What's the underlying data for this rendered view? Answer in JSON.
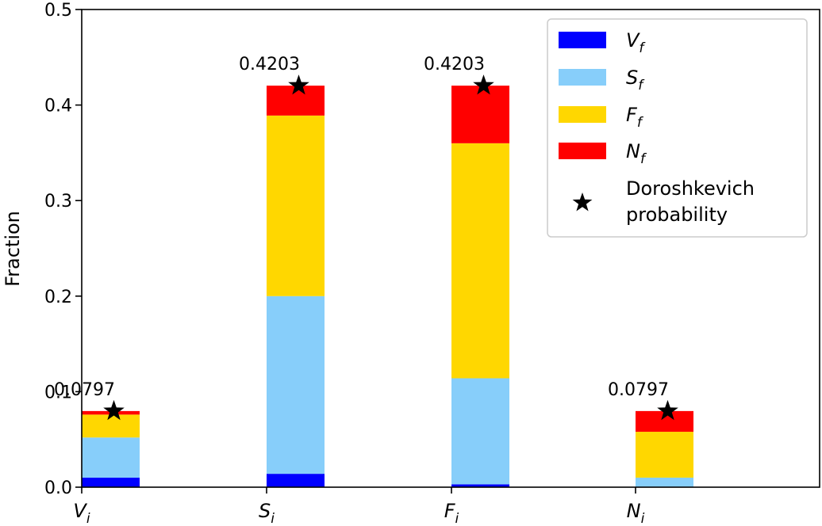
{
  "chart_data": {
    "type": "bar",
    "stacked": true,
    "categories": [
      "V",
      "S",
      "F",
      "N"
    ],
    "category_subscript": "i",
    "ylabel": "Fraction",
    "ylim": [
      0,
      0.5
    ],
    "yticks": [
      "0.0",
      "0.1",
      "0.2",
      "0.3",
      "0.4",
      "0.5"
    ],
    "grid": false,
    "legend_position": "top-right",
    "series": [
      {
        "name": "V",
        "subscript": "f",
        "color": "#0000ff",
        "values": [
          0.01,
          0.014,
          0.003,
          0.0
        ]
      },
      {
        "name": "S",
        "subscript": "f",
        "color": "#87cefa",
        "values": [
          0.042,
          0.186,
          0.111,
          0.01
        ]
      },
      {
        "name": "F",
        "subscript": "f",
        "color": "#ffd700",
        "values": [
          0.024,
          0.189,
          0.246,
          0.048
        ]
      },
      {
        "name": "N",
        "subscript": "f",
        "color": "#ff0000",
        "values": [
          0.0037,
          0.0313,
          0.0603,
          0.0217
        ]
      }
    ],
    "markers": {
      "name": "Doroshkevich probability",
      "name_lines": [
        "Doroshkevich",
        " probability"
      ],
      "symbol": "star",
      "color": "#000000",
      "values": [
        0.0797,
        0.4203,
        0.4203,
        0.0797
      ],
      "labels": [
        "0.0797",
        "0.4203",
        "0.4203",
        "0.0797"
      ]
    }
  }
}
